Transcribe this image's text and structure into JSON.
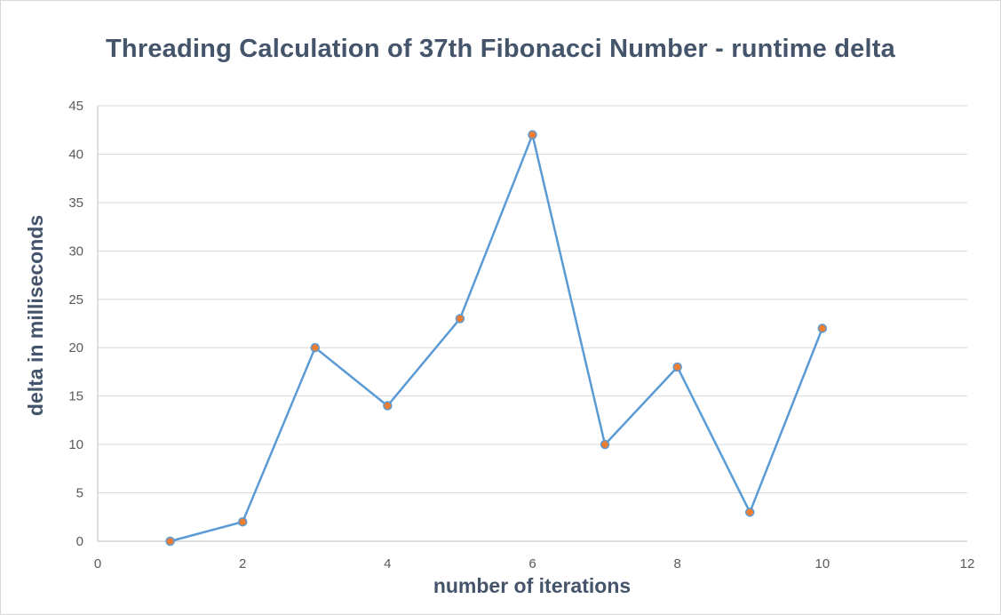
{
  "chart_data": {
    "type": "scatter",
    "title": "Threading Calculation of 37th Fibonacci Number - runtime delta",
    "xlabel": "number of iterations",
    "ylabel": "delta in milliseconds",
    "x": [
      1,
      2,
      3,
      4,
      5,
      6,
      7,
      8,
      9,
      10
    ],
    "series": [
      {
        "values": [
          0,
          2,
          20,
          14,
          23,
          42,
          10,
          18,
          3,
          22
        ]
      }
    ],
    "xlim": [
      0,
      12
    ],
    "ylim": [
      0,
      45
    ],
    "x_ticks": [
      0,
      2,
      4,
      6,
      8,
      10,
      12
    ],
    "y_ticks": [
      0,
      5,
      10,
      15,
      20,
      25,
      30,
      35,
      40,
      45
    ],
    "grid": "horizontal",
    "legend": "none",
    "line_color": "#5b9bd5",
    "marker_color": "#ed7d31",
    "title_color": "#44546a",
    "gridline_color": "#d9d9d9"
  }
}
